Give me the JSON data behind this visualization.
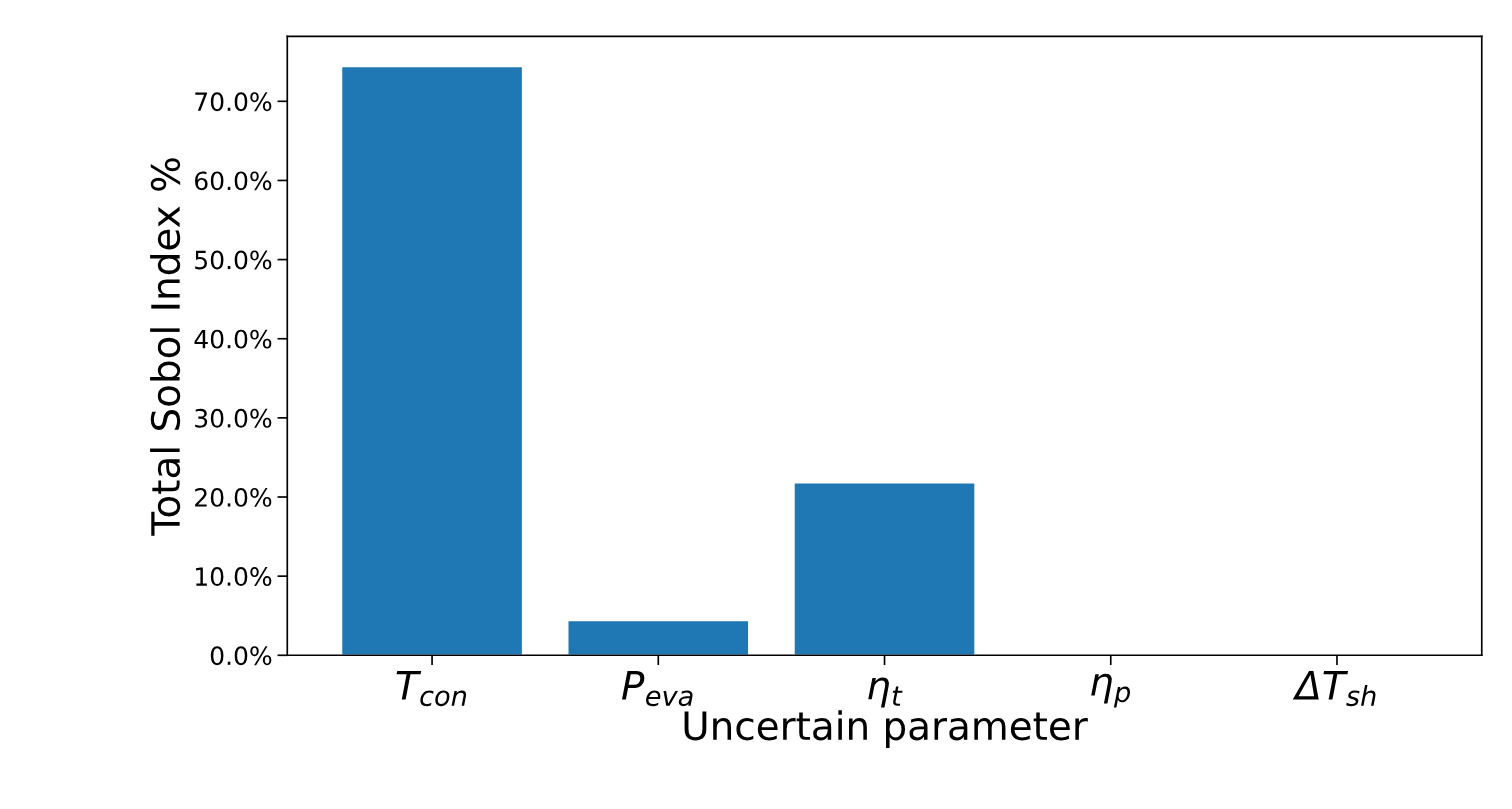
{
  "chart_data": {
    "type": "bar",
    "xlabel": "Uncertain parameter",
    "ylabel": "Total Sobol Index %",
    "categories": [
      "T$_{con}$",
      "P$_{eva}$",
      "η$_{t}$",
      "η$_{p}$",
      "ΔT$_{sh}$"
    ],
    "values": [
      74.4,
      4.4,
      21.8,
      0,
      0
    ],
    "color": "#1f77b4",
    "ylim": [
      0,
      78.2
    ],
    "yticks": [
      {
        "value": 0,
        "label": "0.0%"
      },
      {
        "value": 10,
        "label": "10.0%"
      },
      {
        "value": 20,
        "label": "20.0%"
      },
      {
        "value": 30,
        "label": "30.0%"
      },
      {
        "value": 40,
        "label": "40.0%"
      },
      {
        "value": 50,
        "label": "50.0%"
      },
      {
        "value": 60,
        "label": "60.0%"
      },
      {
        "value": 70,
        "label": "70.0%"
      }
    ],
    "grid": false
  }
}
